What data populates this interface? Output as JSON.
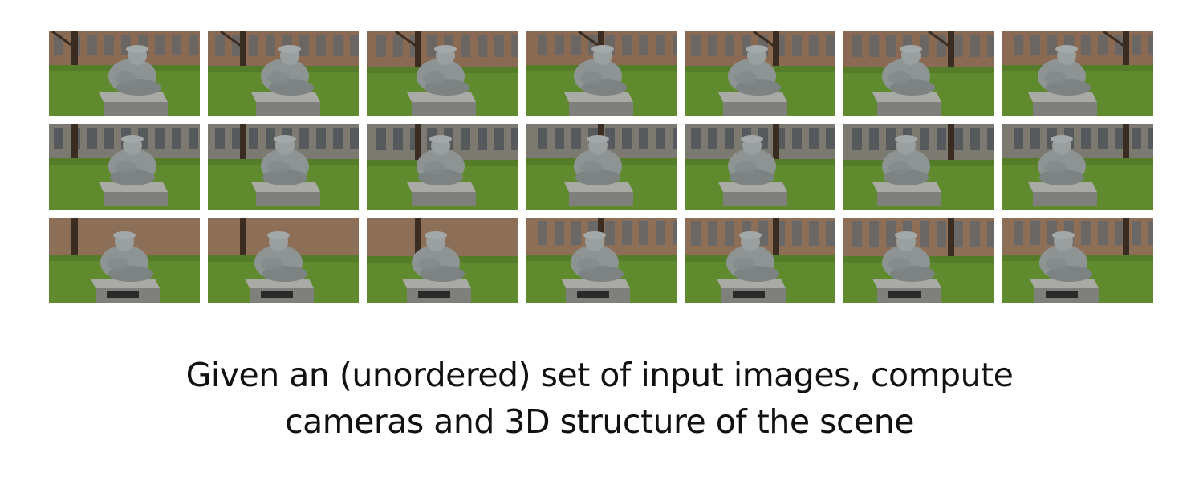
{
  "caption": {
    "line1": "Given an (unordered) set of input images, compute",
    "line2": "cameras and 3D structure of the scene"
  },
  "image_grid": {
    "rows": [
      [
        {
          "view": "side-left"
        },
        {
          "view": "side-left"
        },
        {
          "view": "side-left"
        },
        {
          "view": "side-left"
        },
        {
          "view": "side-left"
        },
        {
          "view": "side-left"
        },
        {
          "view": "side-left"
        }
      ],
      [
        {
          "view": "back-left"
        },
        {
          "view": "back-left"
        },
        {
          "view": "back"
        },
        {
          "view": "back"
        },
        {
          "view": "back"
        },
        {
          "view": "back-right"
        },
        {
          "view": "back-right"
        }
      ],
      [
        {
          "view": "front"
        },
        {
          "view": "front"
        },
        {
          "view": "front"
        },
        {
          "view": "front-right"
        },
        {
          "view": "front-right"
        },
        {
          "view": "front-right"
        },
        {
          "view": "front-right"
        }
      ]
    ]
  },
  "colors": {
    "grass": "#5f8a2e",
    "brick": "#8a6a52",
    "stone": "#8e9494",
    "background": "#ffffff",
    "text": "#111111"
  }
}
